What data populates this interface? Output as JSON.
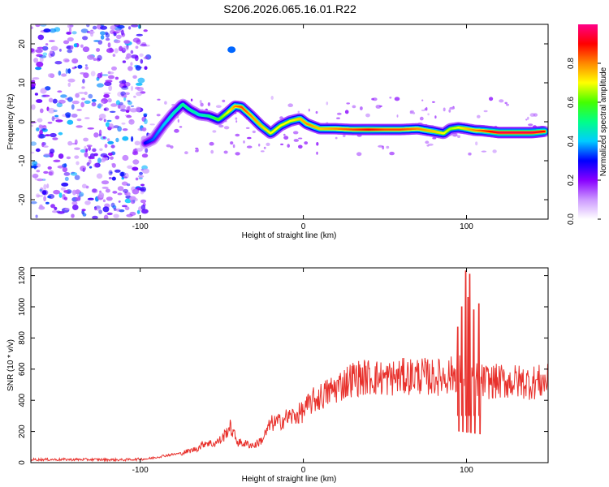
{
  "title": "S206.2026.065.16.01.R22",
  "chart_data": [
    {
      "type": "heatmap",
      "name": "spectrogram",
      "xlabel": "Height of straight line (km)",
      "ylabel": "Frequency (Hz)",
      "xlim": [
        -167,
        150
      ],
      "ylim": [
        -25,
        25
      ],
      "xticks": [
        -100,
        0,
        100
      ],
      "yticks": [
        -20,
        -10,
        0,
        10,
        20
      ],
      "xtick_labels": [
        "-100",
        "0",
        "100"
      ],
      "ytick_labels": [
        "-20",
        "-10",
        "0",
        "10",
        "20"
      ],
      "colorbar": {
        "label": "Normalized spectral amplitude",
        "range": [
          0,
          1
        ],
        "ticks": [
          0.0,
          0.2,
          0.4,
          0.6,
          0.8
        ],
        "tick_labels": [
          "0.0",
          "0.2",
          "0.4",
          "0.6",
          "0.8"
        ],
        "colormap": [
          "#ffffff",
          "#cc99ff",
          "#8800ff",
          "#0000ff",
          "#00ccff",
          "#00ff88",
          "#44ff00",
          "#ffff00",
          "#ff8800",
          "#ff0000",
          "#ff0088"
        ]
      },
      "ridge": {
        "x": [
          -97,
          -92,
          -86,
          -80,
          -74,
          -70,
          -64,
          -58,
          -52,
          -46,
          -42,
          -38,
          -32,
          -26,
          -20,
          -14,
          -8,
          -2,
          2,
          10,
          20,
          30,
          40,
          50,
          60,
          70,
          80,
          86,
          90,
          95,
          100,
          105,
          110,
          120,
          130,
          140,
          147
        ],
        "y": [
          -5.5,
          -4.5,
          -1,
          2,
          4.5,
          3.2,
          1.8,
          1.5,
          0.5,
          2.5,
          4,
          3.8,
          1.5,
          -1,
          -3,
          -1,
          0.2,
          0.8,
          -0.5,
          -1.8,
          -1.8,
          -2,
          -2,
          -2,
          -2,
          -1.8,
          -2.5,
          -3,
          -1.8,
          -1.5,
          -1.8,
          -2.2,
          -2.3,
          -2.8,
          -2.8,
          -2.8,
          -2.5
        ],
        "amplitude": [
          0.3,
          0.35,
          0.4,
          0.45,
          0.5,
          0.5,
          0.45,
          0.5,
          0.6,
          0.7,
          0.8,
          0.85,
          0.8,
          0.75,
          0.7,
          0.7,
          0.7,
          0.75,
          0.8,
          0.75,
          0.8,
          0.85,
          0.9,
          0.85,
          0.85,
          0.8,
          0.75,
          0.7,
          0.65,
          0.7,
          0.75,
          0.8,
          0.85,
          0.95,
          0.95,
          0.95,
          0.9
        ]
      },
      "noise_region": {
        "x_range": [
          -167,
          -95
        ],
        "amplitude_range": [
          0.1,
          0.4
        ]
      },
      "isolated_feature": {
        "x": -44,
        "y": 18.5,
        "amplitude": 0.35
      }
    },
    {
      "type": "line",
      "name": "snr",
      "xlabel": "Height of straight line (km)",
      "ylabel": "SNR (10 * v/v)",
      "xlim": [
        -167,
        150
      ],
      "ylim": [
        0,
        1250
      ],
      "xticks": [
        -100,
        0,
        100
      ],
      "yticks": [
        0,
        200,
        400,
        600,
        800,
        1000,
        1200
      ],
      "xtick_labels": [
        "-100",
        "0",
        "100"
      ],
      "ytick_labels": [
        "0",
        "200",
        "400",
        "600",
        "800",
        "1000",
        "1200"
      ],
      "series": [
        {
          "name": "SNR",
          "color": "#e8312c",
          "x": [
            -167,
            -150,
            -130,
            -110,
            -95,
            -85,
            -75,
            -65,
            -60,
            -55,
            -50,
            -45,
            -40,
            -35,
            -30,
            -25,
            -20,
            -15,
            -10,
            -5,
            0,
            5,
            10,
            20,
            30,
            40,
            50,
            60,
            70,
            80,
            90,
            95,
            100,
            105,
            110,
            120,
            130,
            140,
            150
          ],
          "y": [
            20,
            20,
            20,
            18,
            25,
            45,
            60,
            90,
            130,
            120,
            150,
            230,
            130,
            120,
            110,
            150,
            250,
            260,
            290,
            300,
            330,
            390,
            420,
            480,
            540,
            550,
            540,
            550,
            560,
            545,
            560,
            580,
            560,
            540,
            520,
            520,
            520,
            515,
            520
          ]
        }
      ],
      "spikes": [
        {
          "x": 94.5,
          "y": 870
        },
        {
          "x": 97,
          "y": 1000
        },
        {
          "x": 99.5,
          "y": 1230
        },
        {
          "x": 101,
          "y": 1060
        },
        {
          "x": 102,
          "y": 1210
        },
        {
          "x": 104.5,
          "y": 980
        },
        {
          "x": 107.5,
          "y": 1020
        }
      ]
    }
  ]
}
